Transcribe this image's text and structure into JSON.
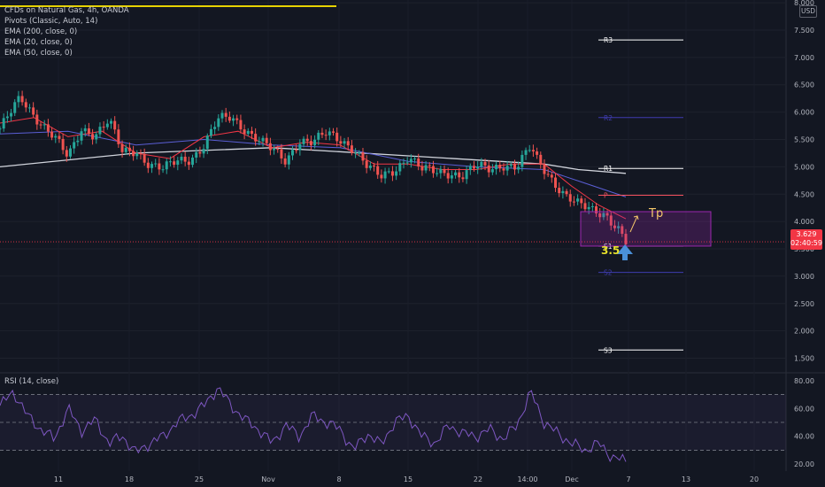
{
  "header": {
    "title": "CFDs on Natural Gas, 4h, OANDA",
    "indicators": [
      "Pivots (Classic, Auto, 14)",
      "EMA (200, close, 0)",
      "EMA (20, close, 0)",
      "EMA (50, close, 0)"
    ],
    "currency": "USD"
  },
  "current_price": {
    "value": "3.629",
    "countdown": "02:40:59"
  },
  "annotations": {
    "tp_label": "Tp",
    "support_label": "3.5"
  },
  "rsi": {
    "label": "RSI (14, close)"
  },
  "colors": {
    "up": "#26a69a",
    "down": "#ef5350",
    "ema200": "#d1d4dc",
    "ema20": "#f23645",
    "ema50": "#5b5fd6",
    "pivot_white": "#ffffff",
    "pivot_blue": "#3f3cb0",
    "pivot_p": "#f7525f",
    "rsi_line": "#7e57c2",
    "box": "#9c27b0",
    "arrow": "#4a90d9",
    "tp": "#f5c76b",
    "support": "#e6e02a"
  },
  "chart_data": [
    {
      "type": "candlestick",
      "title": "CFDs on Natural Gas, 4h, OANDA",
      "x_ticks": [
        "11",
        "18",
        "25",
        "Nov",
        "8",
        "15",
        "22",
        "14:00",
        "Dec",
        "7",
        "13",
        "20"
      ],
      "y_ticks": [
        "8.000",
        "7.500",
        "7.000",
        "6.500",
        "6.000",
        "5.500",
        "5.000",
        "4.500",
        "4.000",
        "3.500",
        "3.000",
        "2.500",
        "2.000",
        "1.500"
      ],
      "ylim": [
        1.25,
        8.05
      ],
      "close_path": [
        [
          0,
          5.7
        ],
        [
          3,
          6.25
        ],
        [
          5,
          5.95
        ],
        [
          8,
          5.55
        ],
        [
          10,
          5.15
        ],
        [
          12,
          5.7
        ],
        [
          14,
          5.6
        ],
        [
          16,
          5.85
        ],
        [
          18,
          5.25
        ],
        [
          20,
          5.3
        ],
        [
          22,
          5.05
        ],
        [
          24,
          4.95
        ],
        [
          26,
          5.1
        ],
        [
          28,
          5.15
        ],
        [
          30,
          5.4
        ],
        [
          32,
          5.85
        ],
        [
          34,
          5.9
        ],
        [
          36,
          5.7
        ],
        [
          38,
          5.5
        ],
        [
          40,
          5.3
        ],
        [
          42,
          5.1
        ],
        [
          44,
          5.5
        ],
        [
          46,
          5.45
        ],
        [
          48,
          5.6
        ],
        [
          50,
          5.5
        ],
        [
          52,
          5.35
        ],
        [
          54,
          5.0
        ],
        [
          56,
          4.8
        ],
        [
          58,
          4.95
        ],
        [
          60,
          5.2
        ],
        [
          62,
          4.95
        ],
        [
          64,
          4.9
        ],
        [
          66,
          4.9
        ],
        [
          68,
          4.85
        ],
        [
          70,
          5.0
        ],
        [
          72,
          4.95
        ],
        [
          74,
          5.05
        ],
        [
          76,
          5.0
        ],
        [
          78,
          5.35
        ],
        [
          79,
          5.1
        ],
        [
          81,
          4.8
        ],
        [
          83,
          4.5
        ],
        [
          85,
          4.3
        ],
        [
          87,
          4.2
        ],
        [
          89,
          4.15
        ],
        [
          91,
          3.85
        ],
        [
          92,
          3.62
        ]
      ],
      "x_span": [
        0,
        92
      ],
      "ema200": [
        [
          0,
          5.0
        ],
        [
          20,
          5.25
        ],
        [
          40,
          5.35
        ],
        [
          60,
          5.2
        ],
        [
          80,
          5.05
        ],
        [
          85,
          4.95
        ],
        [
          92,
          4.88
        ]
      ],
      "ema50": [
        [
          0,
          5.6
        ],
        [
          10,
          5.65
        ],
        [
          20,
          5.4
        ],
        [
          30,
          5.5
        ],
        [
          40,
          5.4
        ],
        [
          50,
          5.35
        ],
        [
          60,
          5.1
        ],
        [
          70,
          5.0
        ],
        [
          80,
          4.95
        ],
        [
          86,
          4.7
        ],
        [
          92,
          4.45
        ]
      ],
      "ema20": [
        [
          0,
          5.8
        ],
        [
          5,
          5.9
        ],
        [
          10,
          5.55
        ],
        [
          15,
          5.65
        ],
        [
          20,
          5.25
        ],
        [
          25,
          5.15
        ],
        [
          30,
          5.55
        ],
        [
          35,
          5.65
        ],
        [
          40,
          5.35
        ],
        [
          45,
          5.45
        ],
        [
          50,
          5.4
        ],
        [
          55,
          5.05
        ],
        [
          60,
          5.05
        ],
        [
          65,
          4.95
        ],
        [
          70,
          4.95
        ],
        [
          75,
          5.05
        ],
        [
          80,
          5.05
        ],
        [
          84,
          4.65
        ],
        [
          88,
          4.3
        ],
        [
          92,
          4.05
        ]
      ],
      "pivots": [
        {
          "label": "R3",
          "value": 7.32,
          "style": "white"
        },
        {
          "label": "R2",
          "value": 5.9,
          "style": "blue"
        },
        {
          "label": "R1",
          "value": 4.97,
          "style": "white"
        },
        {
          "label": "P",
          "value": 4.48,
          "style": "red"
        },
        {
          "label": "S1",
          "value": 3.55,
          "style": "white"
        },
        {
          "label": "S2",
          "value": 3.07,
          "style": "blue"
        },
        {
          "label": "S3",
          "value": 1.65,
          "style": "white"
        }
      ],
      "current_price": 3.629,
      "target_box": {
        "from": 3.55,
        "to": 4.18
      }
    },
    {
      "type": "line",
      "title": "RSI (14, close)",
      "y_ticks": [
        "80.00",
        "60.00",
        "40.00",
        "20.00"
      ],
      "ylim": [
        15,
        85
      ],
      "levels": [
        70,
        50,
        30
      ],
      "path": [
        [
          0,
          62
        ],
        [
          2,
          72
        ],
        [
          4,
          55
        ],
        [
          6,
          45
        ],
        [
          8,
          38
        ],
        [
          10,
          60
        ],
        [
          12,
          44
        ],
        [
          14,
          52
        ],
        [
          16,
          35
        ],
        [
          18,
          40
        ],
        [
          20,
          28
        ],
        [
          22,
          35
        ],
        [
          24,
          40
        ],
        [
          26,
          50
        ],
        [
          28,
          55
        ],
        [
          30,
          62
        ],
        [
          32,
          75
        ],
        [
          34,
          62
        ],
        [
          36,
          52
        ],
        [
          38,
          45
        ],
        [
          40,
          35
        ],
        [
          42,
          48
        ],
        [
          44,
          40
        ],
        [
          46,
          55
        ],
        [
          48,
          50
        ],
        [
          50,
          45
        ],
        [
          52,
          30
        ],
        [
          54,
          42
        ],
        [
          56,
          34
        ],
        [
          58,
          50
        ],
        [
          60,
          55
        ],
        [
          62,
          40
        ],
        [
          64,
          35
        ],
        [
          66,
          48
        ],
        [
          68,
          42
        ],
        [
          70,
          40
        ],
        [
          72,
          45
        ],
        [
          74,
          38
        ],
        [
          76,
          48
        ],
        [
          78,
          72
        ],
        [
          80,
          50
        ],
        [
          82,
          42
        ],
        [
          84,
          35
        ],
        [
          86,
          30
        ],
        [
          88,
          35
        ],
        [
          90,
          25
        ],
        [
          92,
          22
        ]
      ],
      "x_span": [
        0,
        92
      ]
    }
  ]
}
